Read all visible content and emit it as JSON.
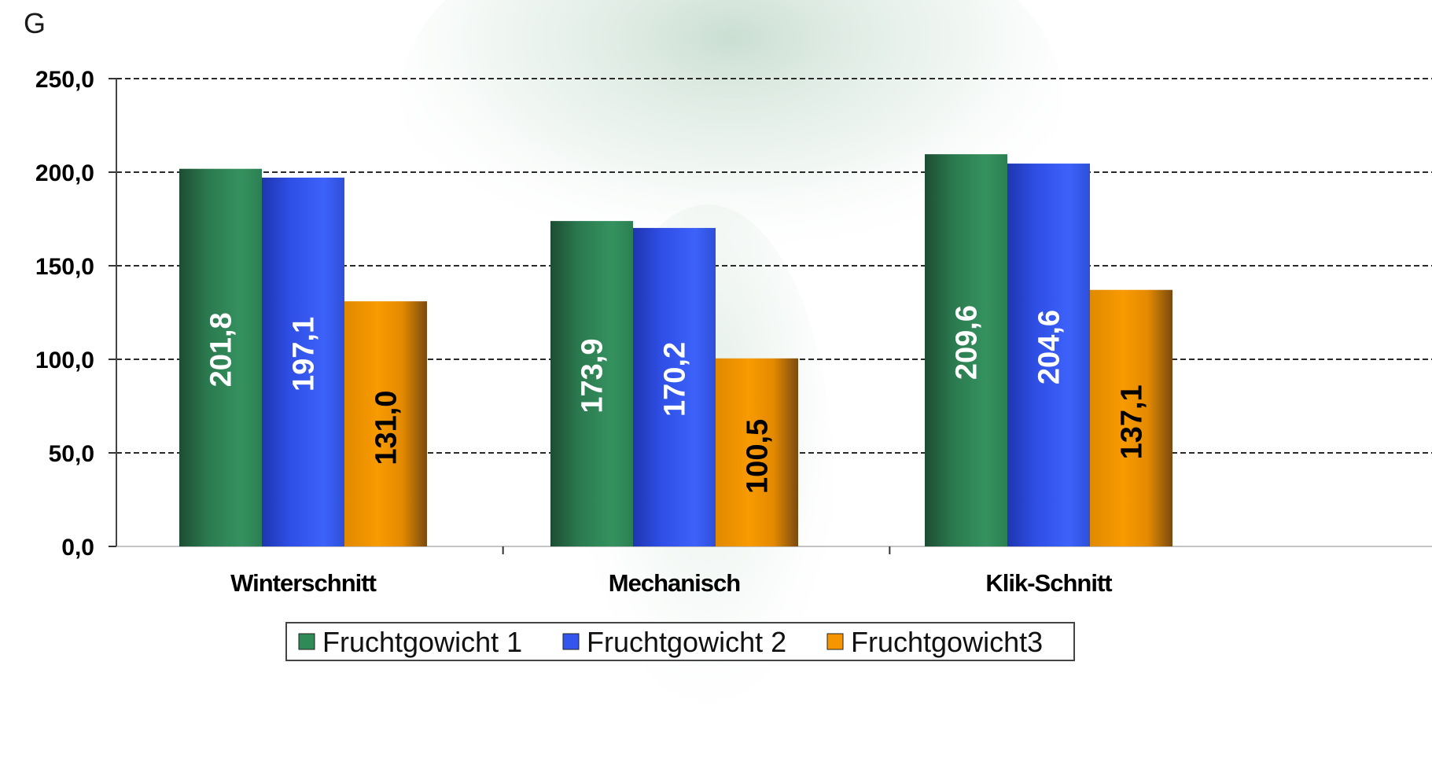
{
  "chart_data": {
    "type": "bar",
    "title": "",
    "ylabel": "G",
    "xlabel": "",
    "ylim": [
      0,
      250
    ],
    "yticks": [
      "0,0",
      "50,0",
      "100,0",
      "150,0",
      "200,0",
      "250,0"
    ],
    "grid": true,
    "legend_position": "bottom",
    "categories": [
      "Winterschnitt",
      "Mechanisch",
      "Klik-Schnitt"
    ],
    "series": [
      {
        "name": "Fruchtgowicht 1",
        "color": "#2e8b57",
        "label_color": "#ffffff",
        "values": [
          201.8,
          173.9,
          209.6
        ],
        "labels": [
          "201,8",
          "173,9",
          "209,6"
        ]
      },
      {
        "name": "Fruchtgowicht 2",
        "color": "#3355ee",
        "label_color": "#ffffff",
        "values": [
          197.1,
          170.2,
          204.6
        ],
        "labels": [
          "197,1",
          "170,2",
          "204,6"
        ]
      },
      {
        "name": "Fruchtgowicht3",
        "color": "#f59500",
        "label_color": "#000000",
        "values": [
          131.0,
          100.5,
          137.1
        ],
        "labels": [
          "131,0",
          "100,5",
          "137,1"
        ]
      }
    ]
  }
}
